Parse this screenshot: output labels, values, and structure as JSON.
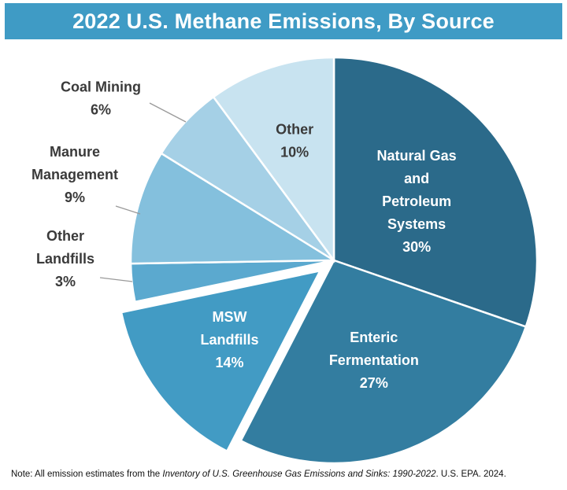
{
  "title": "2022 U.S. Methane Emissions, By Source",
  "chart_data": {
    "type": "pie",
    "title": "2022 U.S. Methane Emissions, By Source",
    "unit": "%",
    "slices": [
      {
        "name": "Natural Gas and Petroleum Systems",
        "label_lines": [
          "Natural Gas",
          "and",
          "Petroleum",
          "Systems"
        ],
        "value": 30,
        "value_label": "30%",
        "color": "#2b6a8a",
        "label_placement": "inside",
        "exploded": false
      },
      {
        "name": "Enteric Fermentation",
        "label_lines": [
          "Enteric",
          "Fermentation"
        ],
        "value": 27,
        "value_label": "27%",
        "color": "#337da0",
        "label_placement": "inside",
        "exploded": false
      },
      {
        "name": "MSW Landfills",
        "label_lines": [
          "MSW",
          "Landfills"
        ],
        "value": 14,
        "value_label": "14%",
        "color": "#429bc4",
        "label_placement": "inside",
        "exploded": true
      },
      {
        "name": "Other Landfills",
        "label_lines": [
          "Other",
          "Landfills"
        ],
        "value": 3,
        "value_label": "3%",
        "color": "#5ba9cf",
        "label_placement": "outside",
        "exploded": false
      },
      {
        "name": "Manure Management",
        "label_lines": [
          "Manure",
          "Management"
        ],
        "value": 9,
        "value_label": "9%",
        "color": "#84c0dd",
        "label_placement": "outside",
        "exploded": false
      },
      {
        "name": "Coal Mining",
        "label_lines": [
          "Coal Mining"
        ],
        "value": 6,
        "value_label": "6%",
        "color": "#a5d0e6",
        "label_placement": "outside",
        "exploded": false
      },
      {
        "name": "Other",
        "label_lines": [
          "Other"
        ],
        "value": 10,
        "value_label": "10%",
        "color": "#c8e3f0",
        "label_placement": "inside",
        "exploded": false
      }
    ]
  },
  "note": {
    "prefix": "Note: All emission estimates from the ",
    "source_title": "Inventory of U.S. Greenhouse Gas Emissions and Sinks: 1990-2022",
    "suffix": ". U.S. EPA. 2024."
  },
  "colors": {
    "title_bar": "#3f9bc5",
    "label_dark": "#3a3a3a",
    "label_light": "#ffffff",
    "leader_line": "#9a9a9a"
  }
}
